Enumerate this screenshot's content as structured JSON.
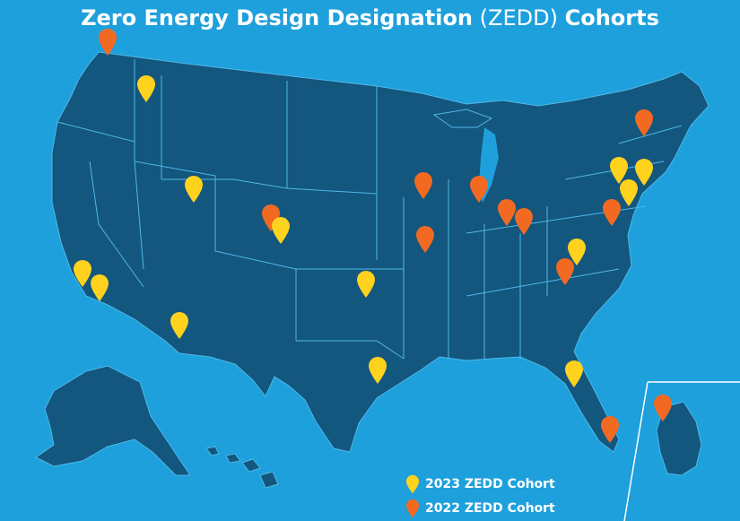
{
  "title": {
    "bold_part": "Zero Energy Design Designation",
    "light_part": "(ZEDD)",
    "tail_part": "Cohorts"
  },
  "colors": {
    "background": "#1ea0dc",
    "land": "#13567e",
    "border": "#4fb8e6",
    "cohort_2023": "#ffd21e",
    "cohort_2022": "#f26a21"
  },
  "legend": {
    "cohort_2023_label": "2023 ZEDD Cohort",
    "cohort_2022_label": "2022 ZEDD Cohort"
  },
  "pins": [
    {
      "name": "pin-2022-washington",
      "cohort": "2022"
    },
    {
      "name": "pin-2023-idaho-north",
      "cohort": "2023"
    },
    {
      "name": "pin-2023-utah",
      "cohort": "2023"
    },
    {
      "name": "pin-2022-colorado",
      "cohort": "2022"
    },
    {
      "name": "pin-2023-colorado",
      "cohort": "2023"
    },
    {
      "name": "pin-2023-california-a",
      "cohort": "2023"
    },
    {
      "name": "pin-2023-california-b",
      "cohort": "2023"
    },
    {
      "name": "pin-2023-arizona",
      "cohort": "2023"
    },
    {
      "name": "pin-2023-oklahoma",
      "cohort": "2023"
    },
    {
      "name": "pin-2023-texas",
      "cohort": "2023"
    },
    {
      "name": "pin-2022-iowa",
      "cohort": "2022"
    },
    {
      "name": "pin-2022-missouri",
      "cohort": "2022"
    },
    {
      "name": "pin-2022-illinois-chicago",
      "cohort": "2022"
    },
    {
      "name": "pin-2022-indiana",
      "cohort": "2022"
    },
    {
      "name": "pin-2022-ohio",
      "cohort": "2022"
    },
    {
      "name": "pin-2022-vermont",
      "cohort": "2022"
    },
    {
      "name": "pin-2023-new-york",
      "cohort": "2023"
    },
    {
      "name": "pin-2023-massachusetts",
      "cohort": "2023"
    },
    {
      "name": "pin-2023-new-jersey",
      "cohort": "2023"
    },
    {
      "name": "pin-2022-maryland",
      "cohort": "2022"
    },
    {
      "name": "pin-2023-virginia",
      "cohort": "2023"
    },
    {
      "name": "pin-2022-north-carolina",
      "cohort": "2022"
    },
    {
      "name": "pin-2023-florida-north",
      "cohort": "2023"
    },
    {
      "name": "pin-2022-florida-south",
      "cohort": "2022"
    },
    {
      "name": "pin-2022-south-korea",
      "cohort": "2022"
    }
  ]
}
